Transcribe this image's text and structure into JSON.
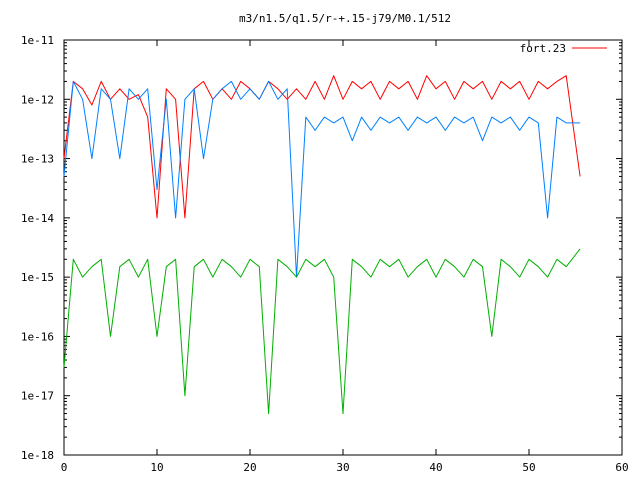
{
  "chart_data": {
    "type": "line",
    "title": "m3/n1.5/q1.5/r-+.15-j79/M0.1/512",
    "xlabel": "",
    "ylabel": "",
    "xlim": [
      0,
      60
    ],
    "ylim": [
      1e-18,
      1e-11
    ],
    "yscale": "log",
    "grid": false,
    "legend_position": "top-right",
    "x_ticks": [
      0,
      10,
      20,
      30,
      40,
      50,
      60
    ],
    "x_tick_labels": [
      "0",
      "10",
      "20",
      "30",
      "40",
      "50",
      "60"
    ],
    "y_ticks": [
      1e-18,
      1e-17,
      1e-16,
      1e-15,
      1e-14,
      1e-13,
      1e-12,
      1e-11
    ],
    "y_tick_labels": [
      "1e-18",
      "1e-17",
      "1e-16",
      "1e-15",
      "1e-14",
      "1e-13",
      "1e-12",
      "1e-11"
    ],
    "series": [
      {
        "name": "fort.23",
        "color": "#ff0000",
        "x": [
          0,
          1,
          2,
          3,
          4,
          5,
          6,
          7,
          8,
          9,
          10,
          11,
          12,
          13,
          14,
          15,
          16,
          17,
          18,
          19,
          20,
          21,
          22,
          23,
          24,
          25,
          26,
          27,
          28,
          29,
          30,
          31,
          32,
          33,
          34,
          35,
          36,
          37,
          38,
          39,
          40,
          41,
          42,
          43,
          44,
          45,
          46,
          47,
          48,
          49,
          50,
          51,
          52,
          53,
          54,
          55.5
        ],
        "y": [
          1e-13,
          2e-12,
          1.5e-12,
          8e-13,
          2e-12,
          1e-12,
          1.5e-12,
          1e-12,
          1.2e-12,
          5e-13,
          1e-14,
          1.5e-12,
          1e-12,
          1e-14,
          1.5e-12,
          2e-12,
          1e-12,
          1.5e-12,
          1e-12,
          2e-12,
          1.5e-12,
          1e-12,
          2e-12,
          1.5e-12,
          1e-12,
          1.5e-12,
          1e-12,
          2e-12,
          1e-12,
          2.5e-12,
          1e-12,
          2e-12,
          1.5e-12,
          2e-12,
          1e-12,
          2e-12,
          1.5e-12,
          2e-12,
          1e-12,
          2.5e-12,
          1.5e-12,
          2e-12,
          1e-12,
          2e-12,
          1.5e-12,
          2e-12,
          1e-12,
          2e-12,
          1.5e-12,
          2e-12,
          1e-12,
          2e-12,
          1.5e-12,
          2e-12,
          2.5e-12,
          5e-14
        ]
      },
      {
        "name": "",
        "color": "#0080ff",
        "x": [
          0,
          1,
          2,
          3,
          4,
          5,
          6,
          7,
          8,
          9,
          10,
          11,
          12,
          13,
          14,
          15,
          16,
          17,
          18,
          19,
          20,
          21,
          22,
          23,
          24,
          25,
          26,
          27,
          28,
          29,
          30,
          31,
          32,
          33,
          34,
          35,
          36,
          37,
          38,
          39,
          40,
          41,
          42,
          43,
          44,
          45,
          46,
          47,
          48,
          49,
          50,
          51,
          52,
          53,
          54,
          55.5
        ],
        "y": [
          5e-14,
          2e-12,
          1e-12,
          1e-13,
          1.5e-12,
          1e-12,
          1e-13,
          1.5e-12,
          1e-12,
          1.5e-12,
          3e-14,
          1e-12,
          1e-14,
          1e-12,
          1.5e-12,
          1e-13,
          1e-12,
          1.5e-12,
          2e-12,
          1e-12,
          1.5e-12,
          1e-12,
          2e-12,
          1e-12,
          1.5e-12,
          1e-15,
          5e-13,
          3e-13,
          5e-13,
          4e-13,
          5e-13,
          2e-13,
          5e-13,
          3e-13,
          5e-13,
          4e-13,
          5e-13,
          3e-13,
          5e-13,
          4e-13,
          5e-13,
          3e-13,
          5e-13,
          4e-13,
          5e-13,
          2e-13,
          5e-13,
          4e-13,
          5e-13,
          3e-13,
          5e-13,
          4e-13,
          1e-14,
          5e-13,
          4e-13,
          4e-13
        ]
      },
      {
        "name": "",
        "color": "#00b000",
        "x": [
          0,
          1,
          2,
          3,
          4,
          5,
          6,
          7,
          8,
          9,
          10,
          11,
          12,
          13,
          14,
          15,
          16,
          17,
          18,
          19,
          20,
          21,
          22,
          23,
          24,
          25,
          26,
          27,
          28,
          29,
          30,
          31,
          32,
          33,
          34,
          35,
          36,
          37,
          38,
          39,
          40,
          41,
          42,
          43,
          44,
          45,
          46,
          47,
          48,
          49,
          50,
          51,
          52,
          53,
          54,
          55.5
        ],
        "y": [
          3e-17,
          2e-15,
          1e-15,
          1.5e-15,
          2e-15,
          1e-16,
          1.5e-15,
          2e-15,
          1e-15,
          2e-15,
          1e-16,
          1.5e-15,
          2e-15,
          1e-17,
          1.5e-15,
          2e-15,
          1e-15,
          2e-15,
          1.5e-15,
          1e-15,
          2e-15,
          1.5e-15,
          5e-18,
          2e-15,
          1.5e-15,
          1e-15,
          2e-15,
          1.5e-15,
          2e-15,
          1e-15,
          5e-18,
          2e-15,
          1.5e-15,
          1e-15,
          2e-15,
          1.5e-15,
          2e-15,
          1e-15,
          1.5e-15,
          2e-15,
          1e-15,
          2e-15,
          1.5e-15,
          1e-15,
          2e-15,
          1.5e-15,
          1e-16,
          2e-15,
          1.5e-15,
          1e-15,
          2e-15,
          1.5e-15,
          1e-15,
          2e-15,
          1.5e-15,
          3e-15
        ]
      }
    ]
  }
}
